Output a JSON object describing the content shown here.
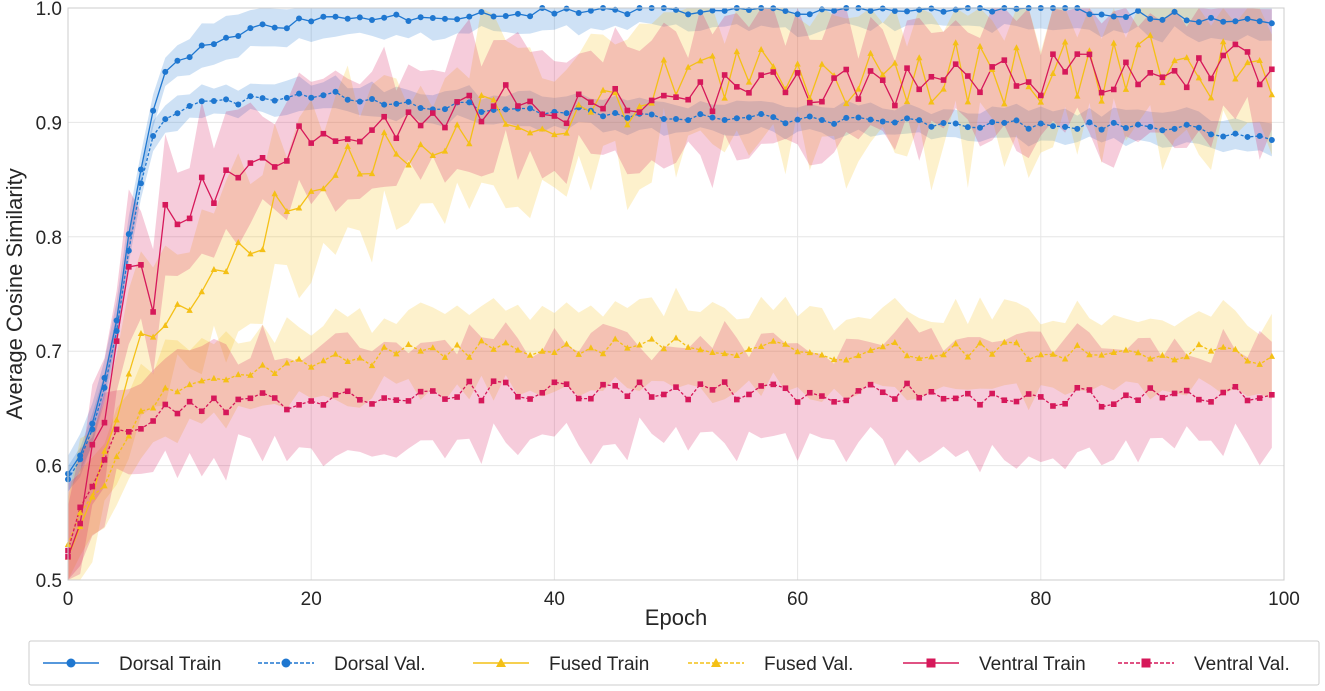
{
  "chart_data": {
    "type": "line",
    "title": "",
    "xlabel": "Epoch",
    "ylabel": "Average Cosine Similarity",
    "xlim": [
      0,
      100
    ],
    "ylim": [
      0.5,
      1.0
    ],
    "xticks": [
      "0",
      "20",
      "40",
      "60",
      "80",
      "100"
    ],
    "yticks": [
      "0.5",
      "0.6",
      "0.7",
      "0.8",
      "0.9",
      "1.0"
    ],
    "grid": true,
    "legend_position": "bottom",
    "series": [
      {
        "name": "Dorsal Train",
        "color": "#1f77d0",
        "dash": "solid",
        "marker": "circle",
        "anchors": [
          [
            0,
            0.595
          ],
          [
            1,
            0.61
          ],
          [
            2,
            0.635
          ],
          [
            3,
            0.68
          ],
          [
            4,
            0.73
          ],
          [
            5,
            0.8
          ],
          [
            6,
            0.86
          ],
          [
            7,
            0.91
          ],
          [
            8,
            0.945
          ],
          [
            10,
            0.96
          ],
          [
            12,
            0.97
          ],
          [
            15,
            0.98
          ],
          [
            20,
            0.99
          ],
          [
            30,
            0.993
          ],
          [
            40,
            0.997
          ],
          [
            60,
            0.998
          ],
          [
            80,
            0.999
          ],
          [
            99,
            0.988
          ]
        ],
        "noise": 0.004,
        "band": 0.012,
        "bandNoise": 0.008,
        "seed": 11
      },
      {
        "name": "Dorsal Val.",
        "color": "#1f77d0",
        "dash": "dashed",
        "marker": "circle",
        "anchors": [
          [
            0,
            0.59
          ],
          [
            1,
            0.605
          ],
          [
            2,
            0.63
          ],
          [
            3,
            0.67
          ],
          [
            4,
            0.72
          ],
          [
            5,
            0.79
          ],
          [
            6,
            0.85
          ],
          [
            7,
            0.89
          ],
          [
            8,
            0.905
          ],
          [
            10,
            0.915
          ],
          [
            15,
            0.92
          ],
          [
            20,
            0.925
          ],
          [
            30,
            0.915
          ],
          [
            40,
            0.91
          ],
          [
            50,
            0.906
          ],
          [
            60,
            0.903
          ],
          [
            70,
            0.9
          ],
          [
            80,
            0.898
          ],
          [
            90,
            0.896
          ],
          [
            99,
            0.887
          ]
        ],
        "noise": 0.004,
        "band": 0.01,
        "bandNoise": 0.006,
        "seed": 23
      },
      {
        "name": "Fused Train",
        "color": "#f4c016",
        "dash": "solid",
        "marker": "triangle",
        "anchors": [
          [
            0,
            0.535
          ],
          [
            2,
            0.6
          ],
          [
            4,
            0.65
          ],
          [
            6,
            0.7
          ],
          [
            8,
            0.73
          ],
          [
            10,
            0.76
          ],
          [
            15,
            0.81
          ],
          [
            20,
            0.85
          ],
          [
            25,
            0.87
          ],
          [
            30,
            0.895
          ],
          [
            35,
            0.905
          ],
          [
            40,
            0.915
          ],
          [
            50,
            0.93
          ],
          [
            60,
            0.94
          ],
          [
            70,
            0.945
          ],
          [
            80,
            0.945
          ],
          [
            90,
            0.95
          ],
          [
            99,
            0.94
          ]
        ],
        "noise": 0.03,
        "band": 0.04,
        "bandNoise": 0.04,
        "seed": 37
      },
      {
        "name": "Fused Val.",
        "color": "#f4c016",
        "dash": "dashed",
        "marker": "triangle",
        "anchors": [
          [
            0,
            0.535
          ],
          [
            2,
            0.57
          ],
          [
            4,
            0.61
          ],
          [
            6,
            0.645
          ],
          [
            8,
            0.66
          ],
          [
            10,
            0.665
          ],
          [
            15,
            0.68
          ],
          [
            20,
            0.69
          ],
          [
            30,
            0.7
          ],
          [
            40,
            0.705
          ],
          [
            50,
            0.705
          ],
          [
            60,
            0.7
          ],
          [
            70,
            0.7
          ],
          [
            80,
            0.7
          ],
          [
            90,
            0.7
          ],
          [
            99,
            0.695
          ]
        ],
        "noise": 0.008,
        "band": 0.025,
        "bandNoise": 0.02,
        "seed": 41
      },
      {
        "name": "Ventral Train",
        "color": "#d6185a",
        "dash": "solid",
        "marker": "square",
        "anchors": [
          [
            0,
            0.53
          ],
          [
            1,
            0.565
          ],
          [
            2,
            0.61
          ],
          [
            3,
            0.65
          ],
          [
            4,
            0.71
          ],
          [
            5,
            0.76
          ],
          [
            6,
            0.78
          ],
          [
            7,
            0.75
          ],
          [
            8,
            0.815
          ],
          [
            10,
            0.83
          ],
          [
            12,
            0.84
          ],
          [
            15,
            0.865
          ],
          [
            20,
            0.9
          ],
          [
            25,
            0.9
          ],
          [
            30,
            0.91
          ],
          [
            40,
            0.915
          ],
          [
            50,
            0.925
          ],
          [
            60,
            0.93
          ],
          [
            70,
            0.935
          ],
          [
            80,
            0.94
          ],
          [
            90,
            0.945
          ],
          [
            99,
            0.95
          ]
        ],
        "noise": 0.02,
        "band": 0.035,
        "bandNoise": 0.035,
        "seed": 53
      },
      {
        "name": "Ventral Val.",
        "color": "#d6185a",
        "dash": "dashed",
        "marker": "square",
        "anchors": [
          [
            0,
            0.53
          ],
          [
            2,
            0.59
          ],
          [
            4,
            0.63
          ],
          [
            6,
            0.64
          ],
          [
            8,
            0.645
          ],
          [
            10,
            0.65
          ],
          [
            20,
            0.66
          ],
          [
            30,
            0.665
          ],
          [
            40,
            0.665
          ],
          [
            50,
            0.665
          ],
          [
            60,
            0.663
          ],
          [
            70,
            0.663
          ],
          [
            80,
            0.66
          ],
          [
            90,
            0.66
          ],
          [
            99,
            0.663
          ]
        ],
        "noise": 0.009,
        "band": 0.03,
        "bandNoise": 0.03,
        "seed": 67
      }
    ]
  }
}
